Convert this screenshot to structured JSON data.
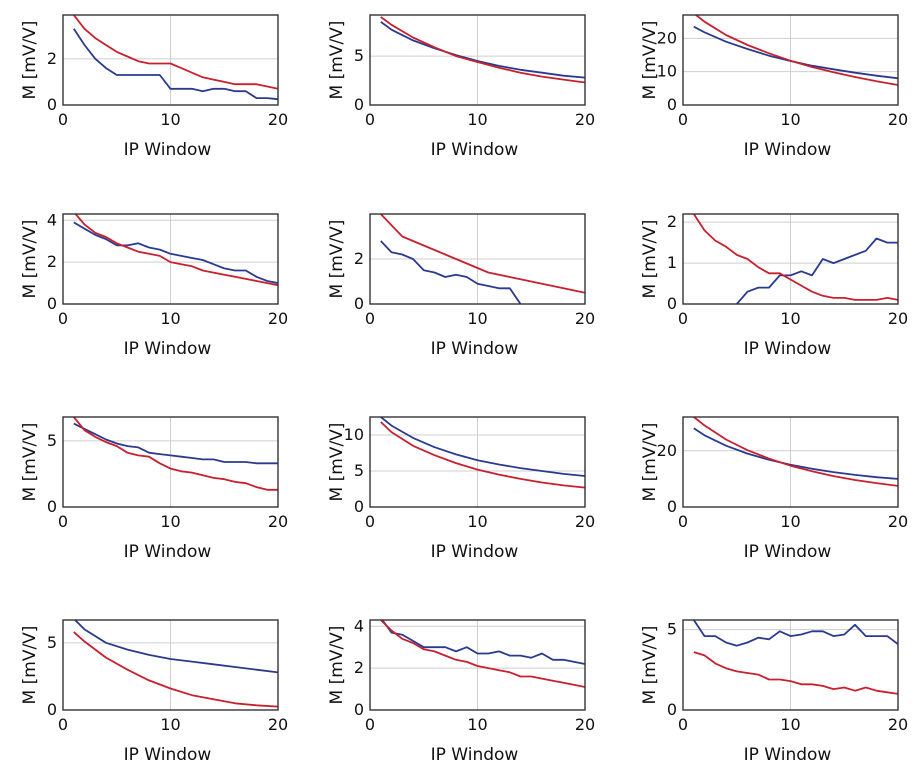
{
  "colors": {
    "blue": "#2b3a8f",
    "red": "#c8202e",
    "grid": "#cfcfcf",
    "axis": "#333333"
  },
  "chart_data": [
    {
      "type": "line",
      "xlabel": "IP Window",
      "ylabel": "M [mV/V]",
      "xlim": [
        0,
        20
      ],
      "ylim": [
        0,
        3.9
      ],
      "xticks": [
        0,
        10,
        20
      ],
      "yticks": [
        0,
        2
      ],
      "series": [
        {
          "color": "blue",
          "x": [
            1,
            2,
            3,
            4,
            5,
            6,
            7,
            8,
            9,
            10,
            11,
            12,
            13,
            14,
            15,
            16,
            17,
            18,
            19,
            20
          ],
          "y": [
            3.3,
            2.6,
            2.0,
            1.6,
            1.3,
            1.3,
            1.3,
            1.3,
            1.3,
            0.7,
            0.7,
            0.7,
            0.6,
            0.7,
            0.7,
            0.6,
            0.6,
            0.3,
            0.3,
            0.25
          ]
        },
        {
          "color": "red",
          "x": [
            1,
            2,
            3,
            4,
            5,
            6,
            7,
            8,
            9,
            10,
            11,
            12,
            13,
            14,
            15,
            16,
            17,
            18,
            19,
            20
          ],
          "y": [
            3.9,
            3.3,
            2.9,
            2.6,
            2.3,
            2.1,
            1.9,
            1.8,
            1.8,
            1.8,
            1.6,
            1.4,
            1.2,
            1.1,
            1.0,
            0.9,
            0.9,
            0.9,
            0.8,
            0.7
          ]
        }
      ]
    },
    {
      "type": "line",
      "xlabel": "IP Window",
      "ylabel": "M [mV/V]",
      "xlim": [
        0,
        20
      ],
      "ylim": [
        0,
        9.2
      ],
      "xticks": [
        0,
        10,
        20
      ],
      "yticks": [
        0,
        5
      ],
      "series": [
        {
          "color": "blue",
          "x": [
            1,
            2,
            4,
            6,
            8,
            10,
            12,
            14,
            16,
            18,
            20
          ],
          "y": [
            8.5,
            7.7,
            6.6,
            5.8,
            5.1,
            4.5,
            4.0,
            3.6,
            3.3,
            3.0,
            2.8
          ]
        },
        {
          "color": "red",
          "x": [
            1,
            2,
            4,
            6,
            8,
            10,
            12,
            14,
            16,
            18,
            20
          ],
          "y": [
            9.0,
            8.2,
            6.9,
            5.9,
            5.0,
            4.4,
            3.8,
            3.3,
            2.9,
            2.6,
            2.3
          ]
        }
      ]
    },
    {
      "type": "line",
      "xlabel": "IP Window",
      "ylabel": "M [mV/V]",
      "xlim": [
        0,
        20
      ],
      "ylim": [
        0,
        27
      ],
      "xticks": [
        0,
        10,
        20
      ],
      "yticks": [
        0,
        10,
        20
      ],
      "series": [
        {
          "color": "blue",
          "x": [
            1,
            2,
            4,
            6,
            8,
            10,
            12,
            14,
            16,
            18,
            20
          ],
          "y": [
            23.5,
            21.8,
            19.0,
            16.8,
            14.8,
            13.2,
            11.8,
            10.7,
            9.7,
            8.8,
            8.0
          ]
        },
        {
          "color": "red",
          "x": [
            1,
            2,
            4,
            6,
            8,
            10,
            12,
            14,
            16,
            18,
            20
          ],
          "y": [
            27.5,
            25.0,
            21.0,
            18.0,
            15.5,
            13.3,
            11.4,
            9.8,
            8.4,
            7.1,
            6.0
          ]
        }
      ]
    },
    {
      "type": "line",
      "xlabel": "IP Window",
      "ylabel": "M [mV/V]",
      "xlim": [
        0,
        20
      ],
      "ylim": [
        0,
        4.3
      ],
      "xticks": [
        0,
        10,
        20
      ],
      "yticks": [
        0,
        2,
        4
      ],
      "series": [
        {
          "color": "blue",
          "x": [
            1,
            2,
            3,
            4,
            5,
            6,
            7,
            8,
            9,
            10,
            11,
            12,
            13,
            14,
            15,
            16,
            17,
            18,
            19,
            20
          ],
          "y": [
            3.9,
            3.6,
            3.3,
            3.1,
            2.8,
            2.8,
            2.9,
            2.7,
            2.6,
            2.4,
            2.3,
            2.2,
            2.1,
            1.9,
            1.7,
            1.6,
            1.6,
            1.3,
            1.1,
            1.0
          ]
        },
        {
          "color": "red",
          "x": [
            1,
            2,
            3,
            4,
            5,
            6,
            7,
            8,
            9,
            10,
            11,
            12,
            13,
            14,
            15,
            16,
            17,
            18,
            19,
            20
          ],
          "y": [
            4.4,
            3.8,
            3.4,
            3.2,
            2.9,
            2.7,
            2.5,
            2.4,
            2.3,
            2.0,
            1.9,
            1.8,
            1.6,
            1.5,
            1.4,
            1.3,
            1.2,
            1.1,
            1.0,
            0.9
          ]
        }
      ]
    },
    {
      "type": "line",
      "xlabel": "IP Window",
      "ylabel": "M [mV/V]",
      "xlim": [
        0,
        20
      ],
      "ylim": [
        0,
        4.0
      ],
      "xticks": [
        0,
        10,
        20
      ],
      "yticks": [
        0,
        2
      ],
      "series": [
        {
          "color": "blue",
          "x": [
            1,
            2,
            3,
            4,
            5,
            6,
            7,
            8,
            9,
            10,
            11,
            12,
            13,
            14
          ],
          "y": [
            2.8,
            2.3,
            2.2,
            2.0,
            1.5,
            1.4,
            1.2,
            1.3,
            1.2,
            0.9,
            0.8,
            0.7,
            0.7,
            0.0
          ]
        },
        {
          "color": "red",
          "x": [
            1,
            2,
            3,
            4,
            5,
            6,
            7,
            8,
            9,
            10,
            11,
            12,
            13,
            14,
            15,
            16,
            17,
            18,
            19,
            20
          ],
          "y": [
            4.0,
            3.5,
            3.0,
            2.8,
            2.6,
            2.4,
            2.2,
            2.0,
            1.8,
            1.6,
            1.4,
            1.3,
            1.2,
            1.1,
            1.0,
            0.9,
            0.8,
            0.7,
            0.6,
            0.5
          ]
        }
      ]
    },
    {
      "type": "line",
      "xlabel": "IP Window",
      "ylabel": "M [mV/V]",
      "xlim": [
        0,
        20
      ],
      "ylim": [
        0,
        2.2
      ],
      "xticks": [
        0,
        10,
        20
      ],
      "yticks": [
        0,
        1,
        2
      ],
      "series": [
        {
          "color": "blue",
          "x": [
            5,
            6,
            7,
            8,
            9,
            10,
            11,
            12,
            13,
            14,
            15,
            16,
            17,
            18,
            19,
            20
          ],
          "y": [
            0.0,
            0.3,
            0.4,
            0.4,
            0.7,
            0.7,
            0.8,
            0.7,
            1.1,
            1.0,
            1.1,
            1.2,
            1.3,
            1.6,
            1.5,
            1.5
          ]
        },
        {
          "color": "red",
          "x": [
            1,
            2,
            3,
            4,
            5,
            6,
            7,
            8,
            9,
            10,
            11,
            12,
            13,
            14,
            15,
            16,
            17,
            18,
            19,
            20
          ],
          "y": [
            2.2,
            1.8,
            1.55,
            1.4,
            1.2,
            1.1,
            0.9,
            0.75,
            0.75,
            0.6,
            0.45,
            0.3,
            0.2,
            0.15,
            0.15,
            0.1,
            0.1,
            0.1,
            0.15,
            0.1
          ]
        }
      ]
    },
    {
      "type": "line",
      "xlabel": "IP Window",
      "ylabel": "M [mV/V]",
      "xlim": [
        0,
        20
      ],
      "ylim": [
        0,
        6.8
      ],
      "xticks": [
        0,
        10,
        20
      ],
      "yticks": [
        0,
        5
      ],
      "series": [
        {
          "color": "blue",
          "x": [
            1,
            2,
            3,
            4,
            5,
            6,
            7,
            8,
            9,
            10,
            11,
            12,
            13,
            14,
            15,
            16,
            17,
            18,
            19,
            20
          ],
          "y": [
            6.3,
            5.9,
            5.5,
            5.1,
            4.8,
            4.6,
            4.5,
            4.1,
            4.0,
            3.9,
            3.8,
            3.7,
            3.6,
            3.6,
            3.4,
            3.4,
            3.4,
            3.3,
            3.3,
            3.3
          ]
        },
        {
          "color": "red",
          "x": [
            1,
            2,
            3,
            4,
            5,
            6,
            7,
            8,
            9,
            10,
            11,
            12,
            13,
            14,
            15,
            16,
            17,
            18,
            19,
            20
          ],
          "y": [
            6.8,
            5.8,
            5.3,
            4.9,
            4.6,
            4.1,
            3.9,
            3.8,
            3.3,
            2.9,
            2.7,
            2.6,
            2.4,
            2.2,
            2.1,
            1.9,
            1.8,
            1.5,
            1.3,
            1.3
          ]
        }
      ]
    },
    {
      "type": "line",
      "xlabel": "IP Window",
      "ylabel": "M [mV/V]",
      "xlim": [
        0,
        20
      ],
      "ylim": [
        0,
        12.5
      ],
      "xticks": [
        0,
        10,
        20
      ],
      "yticks": [
        0,
        5,
        10
      ],
      "series": [
        {
          "color": "blue",
          "x": [
            1,
            2,
            4,
            6,
            8,
            10,
            12,
            14,
            16,
            18,
            20
          ],
          "y": [
            12.5,
            11.3,
            9.6,
            8.3,
            7.3,
            6.5,
            5.9,
            5.4,
            5.0,
            4.6,
            4.3
          ]
        },
        {
          "color": "red",
          "x": [
            1,
            2,
            4,
            6,
            8,
            10,
            12,
            14,
            16,
            18,
            20
          ],
          "y": [
            11.8,
            10.4,
            8.5,
            7.2,
            6.1,
            5.2,
            4.5,
            3.9,
            3.4,
            3.0,
            2.7
          ]
        }
      ]
    },
    {
      "type": "line",
      "xlabel": "IP Window",
      "ylabel": "M [mV/V]",
      "xlim": [
        0,
        20
      ],
      "ylim": [
        0,
        32
      ],
      "xticks": [
        0,
        10,
        20
      ],
      "yticks": [
        0,
        20
      ],
      "series": [
        {
          "color": "blue",
          "x": [
            1,
            2,
            4,
            6,
            8,
            10,
            12,
            14,
            16,
            18,
            20
          ],
          "y": [
            28.0,
            25.5,
            21.8,
            19.0,
            16.8,
            15.0,
            13.6,
            12.4,
            11.4,
            10.6,
            10.0
          ]
        },
        {
          "color": "red",
          "x": [
            1,
            2,
            4,
            6,
            8,
            10,
            12,
            14,
            16,
            18,
            20
          ],
          "y": [
            32.0,
            29.0,
            24.0,
            20.2,
            17.2,
            14.7,
            12.7,
            11.0,
            9.6,
            8.5,
            7.5
          ]
        }
      ]
    },
    {
      "type": "line",
      "xlabel": "IP Window",
      "ylabel": "M [mV/V]",
      "xlim": [
        0,
        20
      ],
      "ylim": [
        0,
        6.7
      ],
      "xticks": [
        0,
        10,
        20
      ],
      "yticks": [
        0,
        5
      ],
      "series": [
        {
          "color": "blue",
          "x": [
            1,
            2,
            4,
            6,
            8,
            10,
            12,
            14,
            16,
            18,
            20
          ],
          "y": [
            6.8,
            6.0,
            5.0,
            4.5,
            4.1,
            3.8,
            3.6,
            3.4,
            3.2,
            3.0,
            2.8
          ]
        },
        {
          "color": "red",
          "x": [
            1,
            2,
            4,
            6,
            8,
            10,
            12,
            14,
            16,
            18,
            20
          ],
          "y": [
            5.8,
            5.1,
            3.9,
            3.0,
            2.2,
            1.6,
            1.1,
            0.8,
            0.5,
            0.35,
            0.25
          ]
        }
      ]
    },
    {
      "type": "line",
      "xlabel": "IP Window",
      "ylabel": "M [mV/V]",
      "xlim": [
        0,
        20
      ],
      "ylim": [
        0,
        4.3
      ],
      "xticks": [
        0,
        10,
        20
      ],
      "yticks": [
        0,
        2,
        4
      ],
      "series": [
        {
          "color": "blue",
          "x": [
            1,
            2,
            3,
            4,
            5,
            6,
            7,
            8,
            9,
            10,
            11,
            12,
            13,
            14,
            15,
            16,
            17,
            18,
            19,
            20
          ],
          "y": [
            4.4,
            3.7,
            3.6,
            3.3,
            3.0,
            3.0,
            3.0,
            2.8,
            3.0,
            2.7,
            2.7,
            2.8,
            2.6,
            2.6,
            2.5,
            2.7,
            2.4,
            2.4,
            2.3,
            2.2
          ]
        },
        {
          "color": "red",
          "x": [
            1,
            2,
            3,
            4,
            5,
            6,
            7,
            8,
            9,
            10,
            11,
            12,
            13,
            14,
            15,
            16,
            17,
            18,
            19,
            20
          ],
          "y": [
            4.3,
            3.8,
            3.4,
            3.2,
            2.9,
            2.8,
            2.6,
            2.4,
            2.3,
            2.1,
            2.0,
            1.9,
            1.8,
            1.6,
            1.6,
            1.5,
            1.4,
            1.3,
            1.2,
            1.1
          ]
        }
      ]
    },
    {
      "type": "line",
      "xlabel": "IP Window",
      "ylabel": "M [mV/V]",
      "xlim": [
        0,
        20
      ],
      "ylim": [
        0,
        5.6
      ],
      "xticks": [
        0,
        10,
        20
      ],
      "yticks": [
        0,
        5
      ],
      "series": [
        {
          "color": "blue",
          "x": [
            1,
            2,
            3,
            4,
            5,
            6,
            7,
            8,
            9,
            10,
            11,
            12,
            13,
            14,
            15,
            16,
            17,
            18,
            19,
            20
          ],
          "y": [
            5.6,
            4.6,
            4.6,
            4.2,
            4.0,
            4.2,
            4.5,
            4.4,
            4.9,
            4.6,
            4.7,
            4.9,
            4.9,
            4.6,
            4.7,
            5.3,
            4.6,
            4.6,
            4.6,
            4.1
          ]
        },
        {
          "color": "red",
          "x": [
            1,
            2,
            3,
            4,
            5,
            6,
            7,
            8,
            9,
            10,
            11,
            12,
            13,
            14,
            15,
            16,
            17,
            18,
            19,
            20
          ],
          "y": [
            3.6,
            3.4,
            2.9,
            2.6,
            2.4,
            2.3,
            2.2,
            1.9,
            1.9,
            1.8,
            1.6,
            1.6,
            1.5,
            1.3,
            1.4,
            1.2,
            1.4,
            1.2,
            1.1,
            1.0
          ]
        }
      ]
    }
  ]
}
